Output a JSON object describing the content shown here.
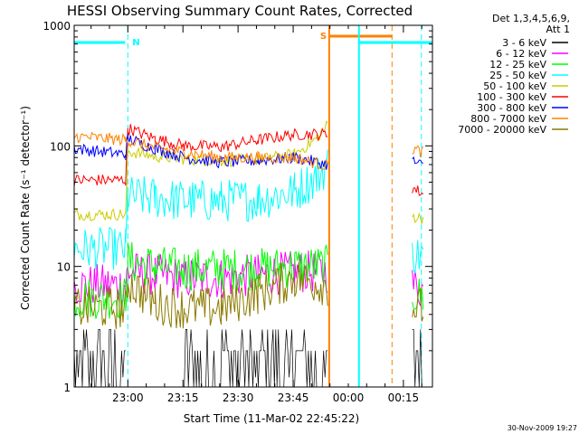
{
  "chart_data": {
    "type": "line",
    "title": "HESSI Observing Summary Count Rates, Corrected",
    "xlabel": "Start Time (11-Mar-02 22:45:22)",
    "ylabel": "Corrected Count Rate (s⁻¹ detector⁻¹)",
    "footer": "30-Nov-2009 19:27",
    "y_scale": "log",
    "ylim": [
      1,
      1000
    ],
    "xlim_minutes_after_start": [
      0,
      97.5
    ],
    "x_tick_labels": [
      {
        "label": "23:00",
        "minutes": 14.6
      },
      {
        "label": "23:15",
        "minutes": 29.6
      },
      {
        "label": "23:30",
        "minutes": 44.6
      },
      {
        "label": "23:45",
        "minutes": 59.6
      },
      {
        "label": "00:00",
        "minutes": 74.6
      },
      {
        "label": "00:15",
        "minutes": 89.6
      }
    ],
    "y_tick_labels": [
      {
        "label": "1",
        "value": 1
      },
      {
        "label": "10",
        "value": 10
      },
      {
        "label": "100",
        "value": 100
      },
      {
        "label": "1000",
        "value": 1000
      }
    ],
    "legend_header": [
      "Det 1,3,4,5,6,9,",
      "Att 1"
    ],
    "legend_placement": "right",
    "series": [
      {
        "name": "3 - 6 keV",
        "color": "#000000",
        "x": [
          0,
          14,
          14.6,
          29.6,
          44.6,
          59.6,
          69,
          69.8,
          92,
          95
        ],
        "y": [
          1.8,
          1.8,
          null,
          1.5,
          1.5,
          1.8,
          1.8,
          null,
          1.8,
          1.8
        ]
      },
      {
        "name": "6 - 12 keV",
        "color": "#ff00ff",
        "x": [
          0,
          14,
          14.6,
          22,
          30,
          40,
          50,
          60,
          69,
          69.8,
          92,
          95
        ],
        "y": [
          7,
          7,
          9,
          8.5,
          8,
          8,
          8.5,
          9,
          9,
          null,
          7,
          6.5
        ]
      },
      {
        "name": "12 - 25 keV",
        "color": "#00ff00",
        "x": [
          0,
          14,
          14.6,
          22,
          30,
          40,
          50,
          60,
          69,
          69.8,
          92,
          95
        ],
        "y": [
          5.5,
          5.5,
          11,
          10,
          9.5,
          9.5,
          9.5,
          10,
          10,
          null,
          6,
          5.5
        ]
      },
      {
        "name": "25 - 50 keV",
        "color": "#00ffff",
        "x": [
          0,
          14,
          14.6,
          22,
          30,
          40,
          50,
          60,
          66,
          69,
          69.8,
          92,
          95
        ],
        "y": [
          14,
          14,
          38,
          37,
          35,
          35,
          36,
          42,
          55,
          70,
          null,
          13,
          12
        ]
      },
      {
        "name": "50 - 100 keV",
        "color": "#cccc00",
        "x": [
          0,
          14,
          14.6,
          22,
          30,
          40,
          50,
          60,
          66,
          69,
          69.8,
          92,
          95
        ],
        "y": [
          27,
          27,
          90,
          82,
          78,
          75,
          77,
          85,
          115,
          150,
          null,
          26,
          25
        ]
      },
      {
        "name": "100 - 300 keV",
        "color": "#ff0000",
        "x": [
          0,
          14,
          14.6,
          22,
          30,
          40,
          50,
          60,
          69,
          69.8,
          92,
          95
        ],
        "y": [
          52,
          52,
          140,
          115,
          100,
          98,
          112,
          125,
          125,
          null,
          45,
          40
        ]
      },
      {
        "name": "300 - 800 keV",
        "color": "#0000ff",
        "x": [
          0,
          14,
          14.6,
          22,
          30,
          40,
          50,
          60,
          69,
          69.8,
          92,
          95
        ],
        "y": [
          95,
          85,
          115,
          95,
          80,
          73,
          76,
          80,
          70,
          null,
          75,
          68
        ]
      },
      {
        "name": "800 - 7000 keV",
        "color": "#ff8000",
        "x": [
          0,
          14,
          14.6,
          22,
          30,
          40,
          50,
          60,
          69,
          69.8,
          92,
          95
        ],
        "y": [
          120,
          112,
          110,
          97,
          88,
          80,
          80,
          80,
          68,
          null,
          95,
          88
        ]
      },
      {
        "name": "7000 - 20000 keV",
        "color": "#8b7a00",
        "x": [
          0,
          14,
          14.6,
          22,
          30,
          40,
          50,
          60,
          69,
          69.8,
          92,
          95
        ],
        "y": [
          4.5,
          4.5,
          7.5,
          5,
          4.5,
          4.5,
          6,
          8,
          7,
          null,
          4.5,
          4.5
        ]
      }
    ],
    "annotations": [
      {
        "text": "N",
        "color": "#00ffff",
        "x_minutes": 14.6
      },
      {
        "text": "S",
        "color": "#ff8000",
        "x_minutes": 71.5
      }
    ]
  }
}
